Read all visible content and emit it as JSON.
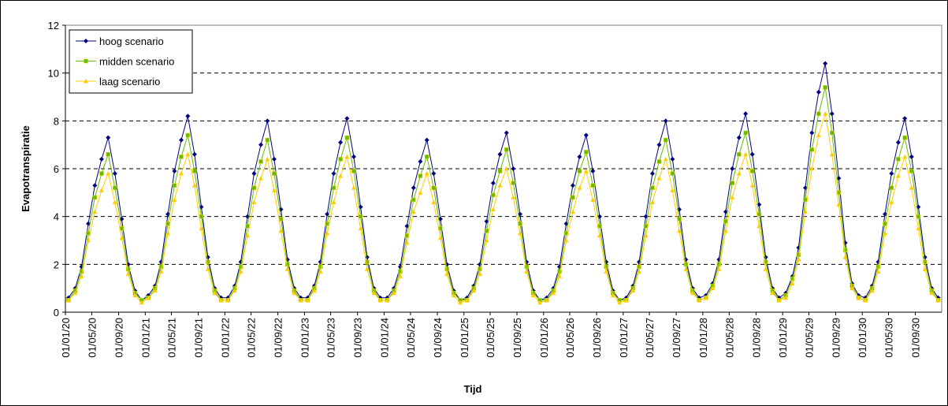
{
  "chart_data": {
    "type": "line",
    "xlabel": "Tijd",
    "ylabel": "Evapotranspiratie",
    "x": [
      "15/01/20",
      "15/02/20",
      "15/03/20",
      "15/04/20",
      "15/05/20",
      "15/06/20",
      "15/07/20",
      "15/08/20",
      "15/09/20",
      "15/10/20",
      "15/11/20",
      "15/12/20",
      "15/01/21",
      "15/02/21",
      "15/03/21",
      "15/04/21",
      "15/05/21",
      "15/06/21",
      "15/07/21",
      "15/08/21",
      "15/09/21",
      "15/10/21",
      "15/11/21",
      "15/12/21",
      "15/01/22",
      "15/02/22",
      "15/03/22",
      "15/04/22",
      "15/05/22",
      "15/06/22",
      "15/07/22",
      "15/08/22",
      "15/09/22",
      "15/10/22",
      "15/11/22",
      "15/12/22",
      "15/01/23",
      "15/02/23",
      "15/03/23",
      "15/04/23",
      "15/05/23",
      "15/06/23",
      "15/07/23",
      "15/08/23",
      "15/09/23",
      "15/10/23",
      "15/11/23",
      "15/12/23",
      "15/01/24",
      "15/02/24",
      "15/03/24",
      "15/04/24",
      "15/05/24",
      "15/06/24",
      "15/07/24",
      "15/08/24",
      "15/09/24",
      "15/10/24",
      "15/11/24",
      "15/12/24",
      "15/01/25",
      "15/02/25",
      "15/03/25",
      "15/04/25",
      "15/05/25",
      "15/06/25",
      "15/07/25",
      "15/08/25",
      "15/09/25",
      "15/10/25",
      "15/11/25",
      "15/12/25",
      "15/01/26",
      "15/02/26",
      "15/03/26",
      "15/04/26",
      "15/05/26",
      "15/06/26",
      "15/07/26",
      "15/08/26",
      "15/09/26",
      "15/10/26",
      "15/11/26",
      "15/12/26",
      "15/01/27",
      "15/02/27",
      "15/03/27",
      "15/04/27",
      "15/05/27",
      "15/06/27",
      "15/07/27",
      "15/08/27",
      "15/09/27",
      "15/10/27",
      "15/11/27",
      "15/12/27",
      "15/01/28",
      "15/02/28",
      "15/03/28",
      "15/04/28",
      "15/05/28",
      "15/06/28",
      "15/07/28",
      "15/08/28",
      "15/09/28",
      "15/10/28",
      "15/11/28",
      "15/12/28",
      "15/01/29",
      "15/02/29",
      "15/03/29",
      "15/04/29",
      "15/05/29",
      "15/06/29",
      "15/07/29",
      "15/08/29",
      "15/09/29",
      "15/10/29",
      "15/11/29",
      "15/12/29",
      "15/01/30",
      "15/02/30",
      "15/03/30",
      "15/04/30",
      "15/05/30",
      "15/06/30",
      "15/07/30",
      "15/08/30",
      "15/09/30",
      "15/10/30",
      "15/11/30",
      "15/12/30"
    ],
    "series": [
      {
        "name": "hoog scenario",
        "color": "#000080",
        "marker": "diamond",
        "values": [
          0.6,
          1.0,
          1.9,
          3.7,
          5.3,
          6.4,
          7.3,
          5.8,
          3.9,
          2.0,
          0.9,
          0.5,
          0.7,
          1.1,
          2.1,
          4.1,
          5.9,
          7.2,
          8.2,
          6.6,
          4.4,
          2.3,
          1.0,
          0.6,
          0.6,
          1.1,
          2.1,
          4.0,
          5.8,
          7.0,
          8.0,
          6.4,
          4.3,
          2.2,
          1.0,
          0.6,
          0.6,
          1.1,
          2.1,
          4.1,
          5.8,
          7.1,
          8.1,
          6.5,
          4.4,
          2.3,
          1.0,
          0.6,
          0.6,
          1.0,
          1.9,
          3.6,
          5.2,
          6.3,
          7.2,
          5.8,
          3.9,
          2.0,
          0.9,
          0.5,
          0.6,
          1.1,
          2.0,
          3.8,
          5.4,
          6.6,
          7.5,
          6.0,
          4.1,
          2.1,
          0.9,
          0.5,
          0.6,
          1.0,
          1.9,
          3.7,
          5.3,
          6.5,
          7.4,
          5.9,
          4.0,
          2.1,
          0.9,
          0.5,
          0.6,
          1.1,
          2.1,
          4.0,
          5.8,
          7.0,
          8.0,
          6.4,
          4.3,
          2.2,
          1.0,
          0.6,
          0.7,
          1.2,
          2.2,
          4.2,
          6.0,
          7.3,
          8.3,
          6.6,
          4.5,
          2.3,
          1.0,
          0.6,
          0.8,
          1.5,
          2.7,
          5.2,
          7.5,
          9.2,
          10.4,
          8.3,
          5.6,
          2.9,
          1.2,
          0.7,
          0.6,
          1.1,
          2.1,
          4.1,
          5.8,
          7.1,
          8.1,
          6.5,
          4.4,
          2.3,
          1.0,
          0.6
        ]
      },
      {
        "name": "midden scenario",
        "color": "#66bb00",
        "marker": "square",
        "values": [
          0.5,
          0.9,
          1.7,
          3.3,
          4.8,
          5.8,
          6.6,
          5.2,
          3.5,
          1.8,
          0.8,
          0.5,
          0.6,
          1.0,
          1.9,
          3.7,
          5.3,
          6.5,
          7.4,
          5.9,
          4.0,
          2.1,
          0.9,
          0.5,
          0.5,
          1.0,
          1.9,
          3.6,
          5.2,
          6.3,
          7.2,
          5.8,
          3.9,
          2.0,
          0.9,
          0.5,
          0.5,
          1.0,
          1.9,
          3.7,
          5.2,
          6.4,
          7.3,
          5.9,
          4.0,
          2.1,
          0.9,
          0.5,
          0.5,
          0.9,
          1.7,
          3.2,
          4.7,
          5.7,
          6.5,
          5.2,
          3.5,
          1.8,
          0.8,
          0.5,
          0.5,
          1.0,
          1.8,
          3.4,
          4.9,
          5.9,
          6.8,
          5.4,
          3.7,
          1.9,
          0.8,
          0.5,
          0.5,
          0.9,
          1.7,
          3.3,
          4.8,
          5.9,
          6.7,
          5.3,
          3.6,
          1.9,
          0.8,
          0.5,
          0.5,
          1.0,
          1.9,
          3.6,
          5.2,
          6.3,
          7.2,
          5.8,
          3.9,
          2.0,
          0.9,
          0.5,
          0.6,
          1.1,
          2.0,
          3.8,
          5.4,
          6.6,
          7.5,
          5.9,
          4.1,
          2.1,
          0.9,
          0.5,
          0.7,
          1.4,
          2.4,
          4.7,
          6.8,
          8.3,
          9.4,
          7.5,
          5.0,
          2.6,
          1.1,
          0.6,
          0.5,
          1.0,
          1.9,
          3.7,
          5.2,
          6.4,
          7.3,
          5.9,
          4.0,
          2.1,
          0.9,
          0.5
        ]
      },
      {
        "name": "laag scenario",
        "color": "#ffcc00",
        "marker": "triangle",
        "values": [
          0.5,
          0.8,
          1.5,
          3.0,
          4.2,
          5.1,
          5.8,
          4.6,
          3.1,
          1.6,
          0.7,
          0.4,
          0.6,
          0.9,
          1.7,
          3.3,
          4.7,
          5.8,
          6.6,
          5.3,
          3.5,
          1.8,
          0.8,
          0.5,
          0.5,
          0.9,
          1.7,
          3.2,
          4.6,
          5.6,
          6.4,
          5.1,
          3.4,
          1.8,
          0.8,
          0.5,
          0.5,
          0.9,
          1.7,
          3.3,
          4.6,
          5.7,
          6.5,
          5.2,
          3.5,
          1.8,
          0.8,
          0.5,
          0.5,
          0.8,
          1.5,
          2.9,
          4.2,
          5.0,
          5.8,
          4.6,
          3.1,
          1.6,
          0.7,
          0.4,
          0.5,
          0.9,
          1.6,
          3.0,
          4.3,
          5.3,
          6.0,
          4.8,
          3.3,
          1.7,
          0.7,
          0.4,
          0.5,
          0.8,
          1.5,
          3.0,
          4.2,
          5.2,
          5.9,
          4.7,
          3.2,
          1.7,
          0.7,
          0.4,
          0.5,
          0.9,
          1.7,
          3.2,
          4.6,
          5.6,
          6.4,
          5.1,
          3.4,
          1.8,
          0.8,
          0.5,
          0.6,
          1.0,
          1.8,
          3.4,
          4.8,
          5.8,
          6.6,
          5.3,
          3.6,
          1.8,
          0.8,
          0.5,
          0.6,
          1.2,
          2.2,
          4.2,
          6.0,
          7.4,
          8.3,
          6.6,
          4.5,
          2.3,
          1.0,
          0.6,
          0.5,
          0.9,
          1.7,
          3.3,
          4.6,
          5.7,
          6.5,
          5.2,
          3.5,
          1.8,
          0.8,
          0.5
        ]
      }
    ],
    "xlim": [
      "01/01/20",
      "31/12/30"
    ],
    "xticks": [
      "01/01/20",
      "01/05/20",
      "01/09/20",
      "01/01/21",
      "01/05/21",
      "01/09/21",
      "01/01/22",
      "01/05/22",
      "01/09/22",
      "01/01/23",
      "01/05/23",
      "01/09/23",
      "01/01/24",
      "01/05/24",
      "01/09/24",
      "01/01/25",
      "01/05/25",
      "01/09/25",
      "01/01/26",
      "01/05/26",
      "01/09/26",
      "01/01/27",
      "01/05/27",
      "01/09/27",
      "01/01/28",
      "01/05/28",
      "01/09/28",
      "01/01/29",
      "01/05/29",
      "01/09/29",
      "01/01/30",
      "01/05/30",
      "01/09/30"
    ],
    "ylim": [
      0,
      12
    ],
    "yticks": [
      0,
      2,
      4,
      6,
      8,
      10,
      12
    ],
    "grid": true,
    "legend": "upper left"
  }
}
